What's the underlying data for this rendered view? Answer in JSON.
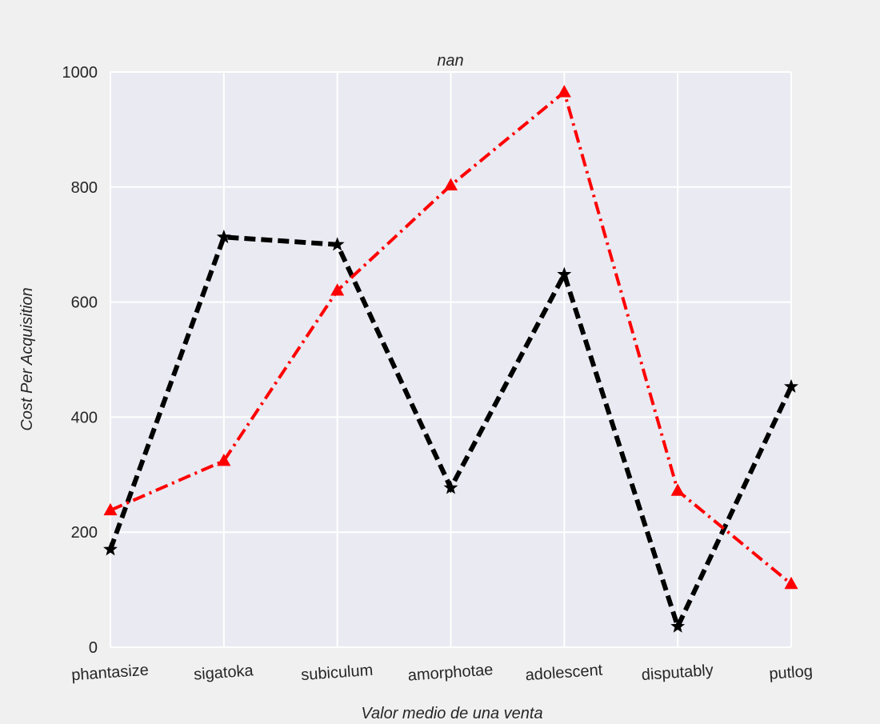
{
  "chart_data": {
    "type": "line",
    "title": "nan",
    "xlabel": "Valor medio de una venta",
    "ylabel": "Cost Per Acquisition",
    "categories": [
      "phantasize",
      "sigatoka",
      "subiculum",
      "amorphotae",
      "adolescent",
      "disputably",
      "putlog"
    ],
    "ylim": [
      0,
      1000
    ],
    "yticks": [
      0,
      200,
      400,
      600,
      800,
      1000
    ],
    "grid": true,
    "series": [
      {
        "values": [
          170,
          713,
          700,
          277,
          648,
          36,
          453
        ],
        "color": "#000000",
        "line_style": "dashed",
        "marker": "star"
      },
      {
        "values": [
          238,
          324,
          620,
          803,
          965,
          272,
          110
        ],
        "color": "#ff0000",
        "line_style": "dashdot",
        "marker": "triangle-up"
      }
    ],
    "colors": {
      "figure_bg": "#f0f0f0",
      "plot_bg": "#eaeaf2",
      "grid": "#ffffff",
      "text": "#262626"
    }
  }
}
